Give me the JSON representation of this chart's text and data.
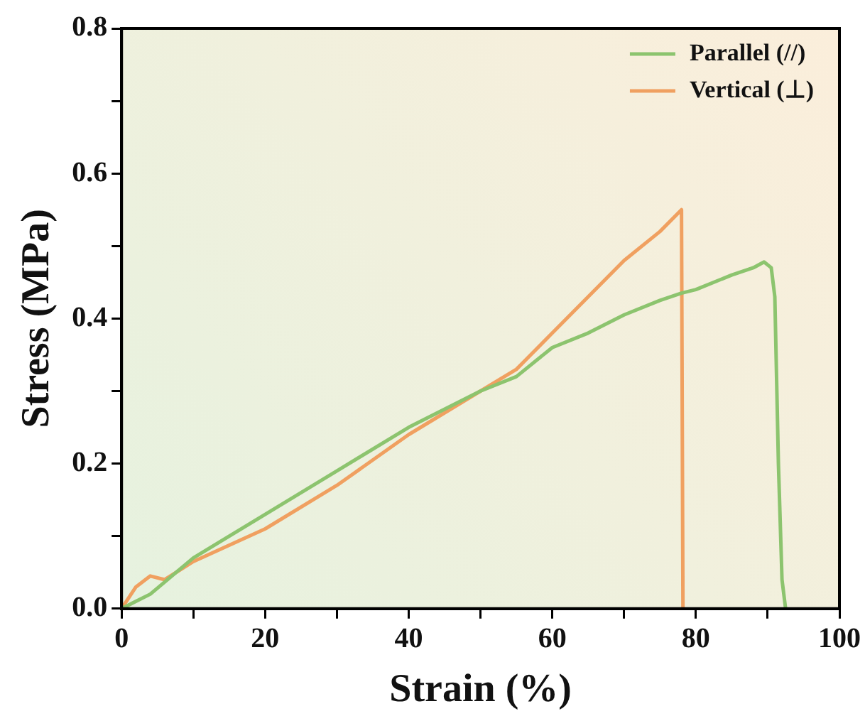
{
  "chart_data": {
    "type": "line",
    "xlabel": "Strain (%)",
    "ylabel": "Stress (MPa)",
    "xlim": [
      0,
      100
    ],
    "ylim": [
      0,
      0.8
    ],
    "xticks": [
      0,
      {
        "value": 10,
        "label": null
      },
      20,
      {
        "value": 30,
        "label": null
      },
      40,
      {
        "value": 50,
        "label": null
      },
      60,
      {
        "value": 70,
        "label": null
      },
      80,
      {
        "value": 90,
        "label": null
      },
      100
    ],
    "yticks": [
      {
        "value": 0,
        "label": "0.0"
      },
      {
        "value": 0.1,
        "label": null
      },
      0.2,
      {
        "value": 0.3,
        "label": null
      },
      0.4,
      {
        "value": 0.5,
        "label": null
      },
      0.6,
      {
        "value": 0.7,
        "label": null
      },
      0.8
    ],
    "grid": false,
    "legend": "top right",
    "marker": "none",
    "line_style": "solid",
    "series": [
      {
        "name": "Parallel (//)",
        "color": "#8cc46e",
        "x": [
          0,
          2,
          4,
          10,
          20,
          30,
          40,
          50,
          55,
          60,
          65,
          70,
          75,
          78,
          80,
          85,
          88,
          89.5,
          90.5,
          91,
          91.5,
          92,
          92.5
        ],
        "values": [
          0,
          0.01,
          0.02,
          0.07,
          0.13,
          0.19,
          0.25,
          0.3,
          0.32,
          0.36,
          0.38,
          0.405,
          0.425,
          0.435,
          0.44,
          0.46,
          0.47,
          0.478,
          0.47,
          0.43,
          0.2,
          0.04,
          0
        ]
      },
      {
        "name": "Vertical (⊥)",
        "color": "#f0a060",
        "x": [
          0,
          2,
          4,
          6,
          10,
          20,
          30,
          40,
          50,
          55,
          60,
          65,
          70,
          75,
          78,
          78.2
        ],
        "values": [
          0,
          0.03,
          0.045,
          0.04,
          0.065,
          0.11,
          0.17,
          0.24,
          0.3,
          0.33,
          0.38,
          0.43,
          0.48,
          0.52,
          0.55,
          0
        ]
      }
    ]
  }
}
